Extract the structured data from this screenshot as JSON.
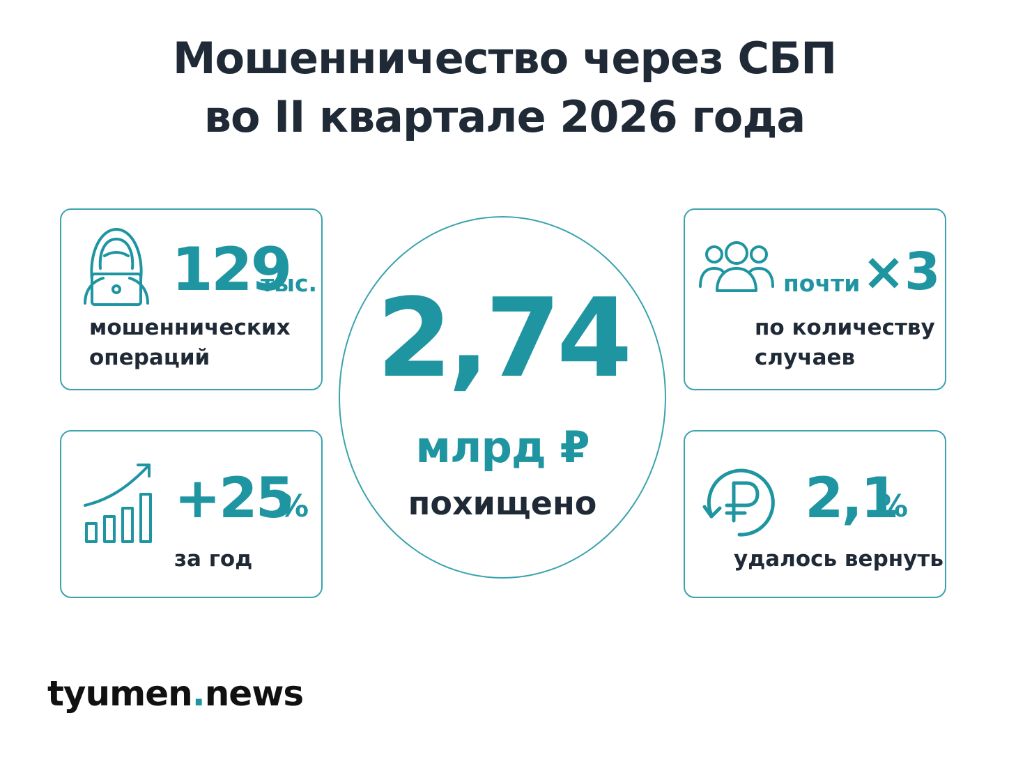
{
  "title": {
    "line1": "Мошенничество через СБП",
    "line2": "во II квартале 2026 года"
  },
  "cards": {
    "operations": {
      "icon": "hacker-laptop-icon",
      "value": "129",
      "unit": "тыс.",
      "caption_line1": "мошеннических",
      "caption_line2": "операций"
    },
    "growth": {
      "icon": "growth-bar-chart-icon",
      "value": "+25",
      "unit": "%",
      "caption": "за год"
    },
    "cases": {
      "icon": "people-group-icon",
      "prefix": "почти",
      "value": "×3",
      "caption_line1": "по количеству",
      "caption_line2": "случаев"
    },
    "returned": {
      "icon": "ruble-refund-icon",
      "value": "2,1",
      "unit": "%",
      "caption": "удалось вернуть"
    }
  },
  "center": {
    "value": "2,74",
    "unit": "млрд ₽",
    "caption": "похищено"
  },
  "logo": {
    "part1": "tyumen",
    "dot": ".",
    "part2": "news"
  },
  "colors": {
    "accent": "#1e95a1",
    "border": "#3aa3ae",
    "text": "#1f2a36"
  }
}
